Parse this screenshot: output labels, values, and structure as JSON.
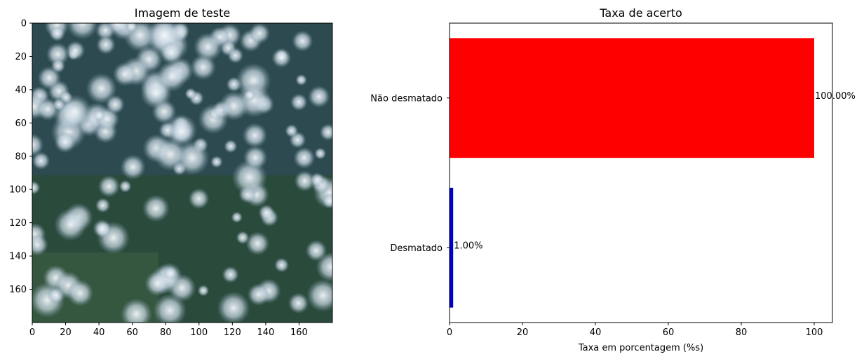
{
  "chart_data": [
    {
      "type": "image",
      "title": "Imagem de teste",
      "xticks": [
        "0",
        "20",
        "40",
        "60",
        "80",
        "100",
        "120",
        "140",
        "160"
      ],
      "yticks": [
        "0",
        "20",
        "40",
        "60",
        "80",
        "100",
        "120",
        "140",
        "160"
      ],
      "xlim": [
        0,
        180
      ],
      "ylim": [
        180,
        0
      ],
      "image_description": "satellite RGB image"
    },
    {
      "type": "bar",
      "orientation": "horizontal",
      "title": "Taxa de acerto",
      "xlabel": "Taxa em porcentagem (%s)",
      "ylabel": "",
      "categories": [
        "Desmatado",
        "Não desmatado"
      ],
      "values": [
        1.0,
        100.0
      ],
      "data_labels": [
        "1.00%",
        "100.00%"
      ],
      "colors": [
        "#0000cc",
        "#ff0000"
      ],
      "xlim": [
        0,
        105
      ],
      "xticks": [
        "0",
        "20",
        "40",
        "60",
        "80",
        "100"
      ],
      "grid": false
    }
  ]
}
